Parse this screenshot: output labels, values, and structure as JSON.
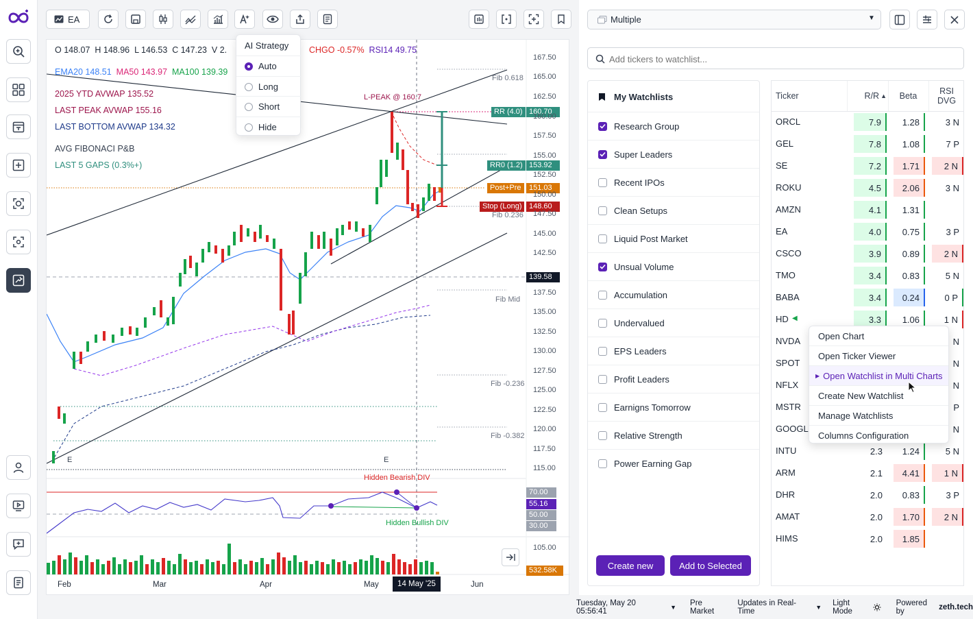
{
  "toolbar": {
    "symbol": "EA"
  },
  "ohlc": {
    "o": "O 148.07",
    "h": "H 148.96",
    "l": "L 146.53",
    "c": "C 147.23",
    "v": "V 2.",
    "chgo": "CHGO -0.57%",
    "rsi": "RSI14 49.75"
  },
  "indicators": {
    "ema20": "EMA20 148.51",
    "ma50": "MA50 143.97",
    "ma100": "MA100 139.39",
    "ytd_avwap": "2025 YTD AVWAP 135.52",
    "last_peak": "LAST PEAK AVWAP 155.16",
    "last_bottom": "LAST BOTTOM AVWAP 134.32",
    "avg_fib": "AVG FIBONACI P&B",
    "last_gaps": "LAST 5 GAPS (0.3%+)"
  },
  "ai_menu": {
    "title": "AI Strategy",
    "options": [
      "Auto",
      "Long",
      "Short",
      "Hide"
    ],
    "selected": "Auto"
  },
  "price_axis": [
    "167.50",
    "165.00",
    "162.50",
    "160.00",
    "157.50",
    "155.00",
    "152.50",
    "150.00",
    "147.50",
    "145.00",
    "142.50",
    "137.50",
    "135.00",
    "132.50",
    "130.00",
    "127.50",
    "125.00",
    "122.50",
    "120.00",
    "117.50",
    "115.00"
  ],
  "tags": {
    "rr": "RR (4.0)",
    "rr_val": "160.70",
    "rr0": "RR0 (1.2)",
    "rr0_val": "153.92",
    "post": "Post+Pre",
    "post_val": "151.03",
    "stop": "Stop (Long)",
    "stop_val": "148.60",
    "cross": "139.58",
    "rsi_vals": [
      "70.00",
      "55.16",
      "50.00",
      "30.00"
    ],
    "vol_axis": "105.00",
    "vol_val": "532.58K"
  },
  "fib": {
    "f618": "Fib 0.618",
    "f236": "Fib 0.236",
    "mid": "Fib Mid",
    "fm236": "Fib -0.236",
    "fm382": "Fib -0.382"
  },
  "annotations": {
    "lpeak": "L-PEAK @ 160.7",
    "bear": "Hidden Bearish DIV",
    "bull": "Hidden Bullish DIV",
    "e1": "E",
    "e2": "E"
  },
  "time_axis": {
    "feb": "Feb",
    "mar": "Mar",
    "apr": "Apr",
    "may": "May",
    "cursor": "14 May '25",
    "jun": "Jun"
  },
  "watchlist_select": "Multiple",
  "search": {
    "placeholder": "Add tickers to watchlist..."
  },
  "watchlists": {
    "title": "My Watchlists",
    "items": [
      {
        "name": "Research Group",
        "checked": true
      },
      {
        "name": "Super Leaders",
        "checked": true
      },
      {
        "name": "Recent IPOs",
        "checked": false
      },
      {
        "name": "Clean Setups",
        "checked": false
      },
      {
        "name": "Liquid Post Market",
        "checked": false
      },
      {
        "name": "Unsual Volume",
        "checked": true
      },
      {
        "name": "Accumulation",
        "checked": false
      },
      {
        "name": "Undervalued",
        "checked": false
      },
      {
        "name": "EPS Leaders",
        "checked": false
      },
      {
        "name": "Profit Leaders",
        "checked": false
      },
      {
        "name": "Earnigns Tomorrow",
        "checked": false
      },
      {
        "name": "Relative Strength",
        "checked": false
      },
      {
        "name": "Power Earning Gap",
        "checked": false
      }
    ],
    "create": "Create new",
    "add": "Add to Selected"
  },
  "table": {
    "headers": {
      "ticker": "Ticker",
      "rr": "R/R",
      "beta": "Beta",
      "rsi1": "RSI",
      "rsi2": "DVG"
    },
    "rows": [
      {
        "t": "ORCL",
        "rr": "7.9",
        "beta": "1.28",
        "rsi": "3 N"
      },
      {
        "t": "GEL",
        "rr": "7.8",
        "beta": "1.08",
        "rsi": "7 P"
      },
      {
        "t": "SE",
        "rr": "7.2",
        "beta": "1.71",
        "rsi": "2 N"
      },
      {
        "t": "ROKU",
        "rr": "4.5",
        "beta": "2.06",
        "rsi": "3 N"
      },
      {
        "t": "AMZN",
        "rr": "4.1",
        "beta": "1.31",
        "rsi": ""
      },
      {
        "t": "EA",
        "rr": "4.0",
        "beta": "0.75",
        "rsi": "3 P"
      },
      {
        "t": "CSCO",
        "rr": "3.9",
        "beta": "0.89",
        "rsi": "2 N"
      },
      {
        "t": "TMO",
        "rr": "3.4",
        "beta": "0.83",
        "rsi": "5 N"
      },
      {
        "t": "BABA",
        "rr": "3.4",
        "beta": "0.24",
        "rsi": "0 P"
      },
      {
        "t": "HD",
        "rr": "3.3",
        "beta": "1.06",
        "rsi": "1 N"
      },
      {
        "t": "NVDA",
        "rr": "",
        "beta": "",
        "rsi": "N"
      },
      {
        "t": "SPOT",
        "rr": "",
        "beta": "",
        "rsi": "N"
      },
      {
        "t": "NFLX",
        "rr": "",
        "beta": "",
        "rsi": "N"
      },
      {
        "t": "MSTR",
        "rr": "",
        "beta": "",
        "rsi": "P"
      },
      {
        "t": "GOOGL",
        "rr": "",
        "beta": "",
        "rsi": "N"
      },
      {
        "t": "INTU",
        "rr": "2.3",
        "beta": "1.24",
        "rsi": "5 N"
      },
      {
        "t": "ARM",
        "rr": "2.1",
        "beta": "4.41",
        "rsi": "1 N"
      },
      {
        "t": "DHR",
        "rr": "2.0",
        "beta": "0.83",
        "rsi": "3 P"
      },
      {
        "t": "AMAT",
        "rr": "2.0",
        "beta": "1.70",
        "rsi": "2 N"
      },
      {
        "t": "HIMS",
        "rr": "2.0",
        "beta": "1.85",
        "rsi": ""
      }
    ]
  },
  "context_menu": [
    "Open Chart",
    "Open Ticker Viewer",
    "Open Watchlist in Multi Charts",
    "Create New Watchlist",
    "Manage Watchlists",
    "Columns Configuration"
  ],
  "status": {
    "date": "Tuesday, May 20 05:56:41",
    "session": "Pre Market",
    "updates": "Updates in Real-Time",
    "mode": "Light Mode",
    "powered": "Powered by",
    "brand": "zeth.tech"
  },
  "colors": {
    "accent": "#5b21b6",
    "green": "#16a34a",
    "red": "#dc2626",
    "teal": "#2f8f7e"
  }
}
